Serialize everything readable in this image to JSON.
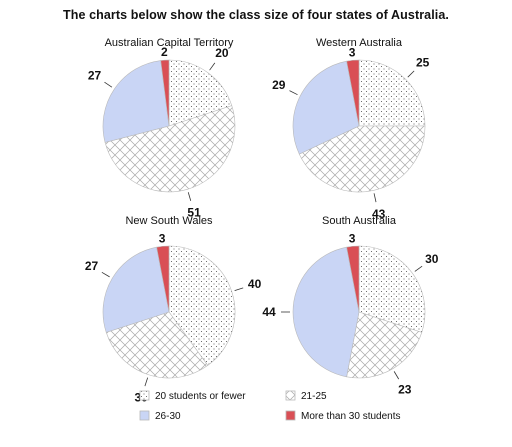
{
  "title": "The charts below show the class size of four states of Australia.",
  "colors": {
    "20 students or fewer": "#ffffff",
    "21-25": "#ffffff",
    "26-30": "#c9d5f5",
    "More than 30 students": "#d94f55",
    "stroke": "#b9b9b9",
    "dots": "#4a4a4a",
    "hatch": "#9a9a9a"
  },
  "chart_data": [
    {
      "type": "pie",
      "title": "Australian Capital Territory",
      "categories": [
        "20 students or fewer",
        "21-25",
        "26-30",
        "More than 30 students"
      ],
      "values": [
        20,
        51,
        27,
        2
      ]
    },
    {
      "type": "pie",
      "title": "Western Australia",
      "categories": [
        "20 students or fewer",
        "21-25",
        "26-30",
        "More than 30 students"
      ],
      "values": [
        25,
        43,
        29,
        3
      ]
    },
    {
      "type": "pie",
      "title": "New South Wales",
      "categories": [
        "20 students or fewer",
        "21-25",
        "26-30",
        "More than 30 students"
      ],
      "values": [
        40,
        30,
        27,
        3
      ]
    },
    {
      "type": "pie",
      "title": "South Australia",
      "categories": [
        "20 students or fewer",
        "21-25",
        "26-30",
        "More than 30 students"
      ],
      "values": [
        30,
        23,
        44,
        3
      ]
    }
  ],
  "legend": {
    "placement": "bottom",
    "items": [
      "20 students or fewer",
      "21-25",
      "26-30",
      "More than 30 students"
    ]
  }
}
